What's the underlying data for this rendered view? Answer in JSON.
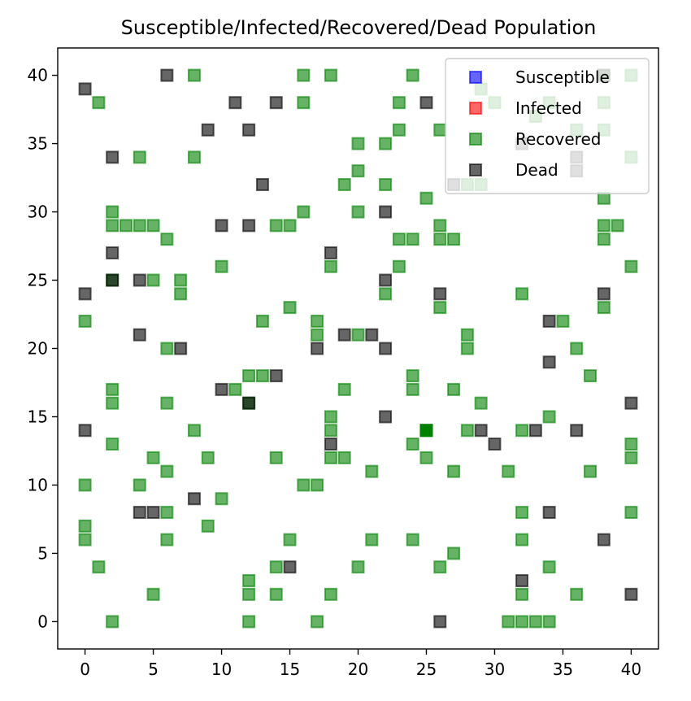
{
  "chart_data": {
    "type": "scatter",
    "title": "Susceptible/Infected/Recovered/Dead Population",
    "xlabel": "",
    "ylabel": "",
    "xlim": [
      -2,
      42
    ],
    "ylim": [
      -2,
      42
    ],
    "xticks": [
      0,
      5,
      10,
      15,
      20,
      25,
      30,
      35,
      40
    ],
    "yticks": [
      0,
      5,
      10,
      15,
      20,
      25,
      30,
      35,
      40
    ],
    "grid": false,
    "legend_position": "top-right",
    "series": [
      {
        "name": "Susceptible",
        "color": "#0000ff",
        "points": []
      },
      {
        "name": "Infected",
        "color": "#ff0000",
        "points": []
      },
      {
        "name": "Recovered",
        "color": "#008000",
        "points": [
          [
            8,
            40
          ],
          [
            16,
            40
          ],
          [
            18,
            40
          ],
          [
            24,
            40
          ],
          [
            38,
            40
          ],
          [
            40,
            40
          ],
          [
            29,
            39
          ],
          [
            1,
            38
          ],
          [
            16,
            38
          ],
          [
            23,
            38
          ],
          [
            30,
            38
          ],
          [
            34,
            38
          ],
          [
            38,
            38
          ],
          [
            33,
            37
          ],
          [
            23,
            36
          ],
          [
            26,
            36
          ],
          [
            36,
            36
          ],
          [
            38,
            36
          ],
          [
            20,
            35
          ],
          [
            22,
            35
          ],
          [
            4,
            34
          ],
          [
            8,
            34
          ],
          [
            40,
            34
          ],
          [
            20,
            33
          ],
          [
            19,
            32
          ],
          [
            22,
            32
          ],
          [
            28,
            32
          ],
          [
            29,
            32
          ],
          [
            25,
            31
          ],
          [
            38,
            31
          ],
          [
            2,
            30
          ],
          [
            16,
            30
          ],
          [
            20,
            30
          ],
          [
            2,
            29
          ],
          [
            3,
            29
          ],
          [
            4,
            29
          ],
          [
            5,
            29
          ],
          [
            14,
            29
          ],
          [
            15,
            29
          ],
          [
            26,
            29
          ],
          [
            38,
            29
          ],
          [
            39,
            29
          ],
          [
            6,
            28
          ],
          [
            23,
            28
          ],
          [
            24,
            28
          ],
          [
            26,
            28
          ],
          [
            27,
            28
          ],
          [
            38,
            28
          ],
          [
            10,
            26
          ],
          [
            18,
            26
          ],
          [
            23,
            26
          ],
          [
            40,
            26
          ],
          [
            2,
            25
          ],
          [
            5,
            25
          ],
          [
            7,
            25
          ],
          [
            7,
            24
          ],
          [
            22,
            24
          ],
          [
            32,
            24
          ],
          [
            15,
            23
          ],
          [
            26,
            23
          ],
          [
            38,
            23
          ],
          [
            0,
            22
          ],
          [
            13,
            22
          ],
          [
            17,
            22
          ],
          [
            35,
            22
          ],
          [
            17,
            21
          ],
          [
            20,
            21
          ],
          [
            28,
            21
          ],
          [
            6,
            20
          ],
          [
            28,
            20
          ],
          [
            36,
            20
          ],
          [
            12,
            18
          ],
          [
            13,
            18
          ],
          [
            24,
            18
          ],
          [
            37,
            18
          ],
          [
            2,
            17
          ],
          [
            11,
            17
          ],
          [
            19,
            17
          ],
          [
            24,
            17
          ],
          [
            27,
            17
          ],
          [
            2,
            16
          ],
          [
            6,
            16
          ],
          [
            12,
            16
          ],
          [
            29,
            16
          ],
          [
            18,
            15
          ],
          [
            34,
            15
          ],
          [
            8,
            14
          ],
          [
            18,
            14
          ],
          [
            25,
            14
          ],
          [
            28,
            14
          ],
          [
            32,
            14
          ],
          [
            2,
            13
          ],
          [
            24,
            13
          ],
          [
            40,
            13
          ],
          [
            5,
            12
          ],
          [
            9,
            12
          ],
          [
            14,
            12
          ],
          [
            18,
            12
          ],
          [
            19,
            12
          ],
          [
            25,
            12
          ],
          [
            40,
            12
          ],
          [
            6,
            11
          ],
          [
            21,
            11
          ],
          [
            27,
            11
          ],
          [
            31,
            11
          ],
          [
            37,
            11
          ],
          [
            0,
            10
          ],
          [
            4,
            10
          ],
          [
            16,
            10
          ],
          [
            17,
            10
          ],
          [
            10,
            9
          ],
          [
            6,
            8
          ],
          [
            32,
            8
          ],
          [
            40,
            8
          ],
          [
            0,
            7
          ],
          [
            9,
            7
          ],
          [
            0,
            6
          ],
          [
            6,
            6
          ],
          [
            15,
            6
          ],
          [
            21,
            6
          ],
          [
            24,
            6
          ],
          [
            32,
            6
          ],
          [
            27,
            5
          ],
          [
            1,
            4
          ],
          [
            14,
            4
          ],
          [
            20,
            4
          ],
          [
            26,
            4
          ],
          [
            34,
            4
          ],
          [
            12,
            3
          ],
          [
            5,
            2
          ],
          [
            12,
            2
          ],
          [
            14,
            2
          ],
          [
            18,
            2
          ],
          [
            32,
            2
          ],
          [
            36,
            2
          ],
          [
            2,
            0
          ],
          [
            12,
            0
          ],
          [
            17,
            0
          ],
          [
            31,
            0
          ],
          [
            32,
            0
          ],
          [
            33,
            0
          ],
          [
            34,
            0
          ]
        ]
      },
      {
        "name": "Dead",
        "color": "#000000",
        "points": [
          [
            6,
            40
          ],
          [
            38,
            40
          ],
          [
            0,
            39
          ],
          [
            11,
            38
          ],
          [
            14,
            38
          ],
          [
            25,
            38
          ],
          [
            9,
            36
          ],
          [
            12,
            36
          ],
          [
            32,
            35
          ],
          [
            2,
            34
          ],
          [
            36,
            34
          ],
          [
            36,
            33
          ],
          [
            13,
            32
          ],
          [
            27,
            32
          ],
          [
            10,
            29
          ],
          [
            12,
            29
          ],
          [
            22,
            30
          ],
          [
            2,
            27
          ],
          [
            18,
            27
          ],
          [
            2,
            25
          ],
          [
            4,
            25
          ],
          [
            22,
            25
          ],
          [
            0,
            24
          ],
          [
            26,
            24
          ],
          [
            38,
            24
          ],
          [
            34,
            22
          ],
          [
            4,
            21
          ],
          [
            19,
            21
          ],
          [
            21,
            21
          ],
          [
            7,
            20
          ],
          [
            17,
            20
          ],
          [
            22,
            20
          ],
          [
            34,
            19
          ],
          [
            14,
            18
          ],
          [
            10,
            17
          ],
          [
            12,
            16
          ],
          [
            40,
            16
          ],
          [
            22,
            15
          ],
          [
            0,
            14
          ],
          [
            29,
            14
          ],
          [
            33,
            14
          ],
          [
            36,
            14
          ],
          [
            18,
            13
          ],
          [
            30,
            13
          ],
          [
            8,
            9
          ],
          [
            4,
            8
          ],
          [
            5,
            8
          ],
          [
            34,
            8
          ],
          [
            38,
            6
          ],
          [
            15,
            4
          ],
          [
            32,
            3
          ],
          [
            40,
            2
          ],
          [
            26,
            0
          ]
        ]
      }
    ],
    "highlight_points": [
      [
        25,
        14
      ]
    ]
  }
}
